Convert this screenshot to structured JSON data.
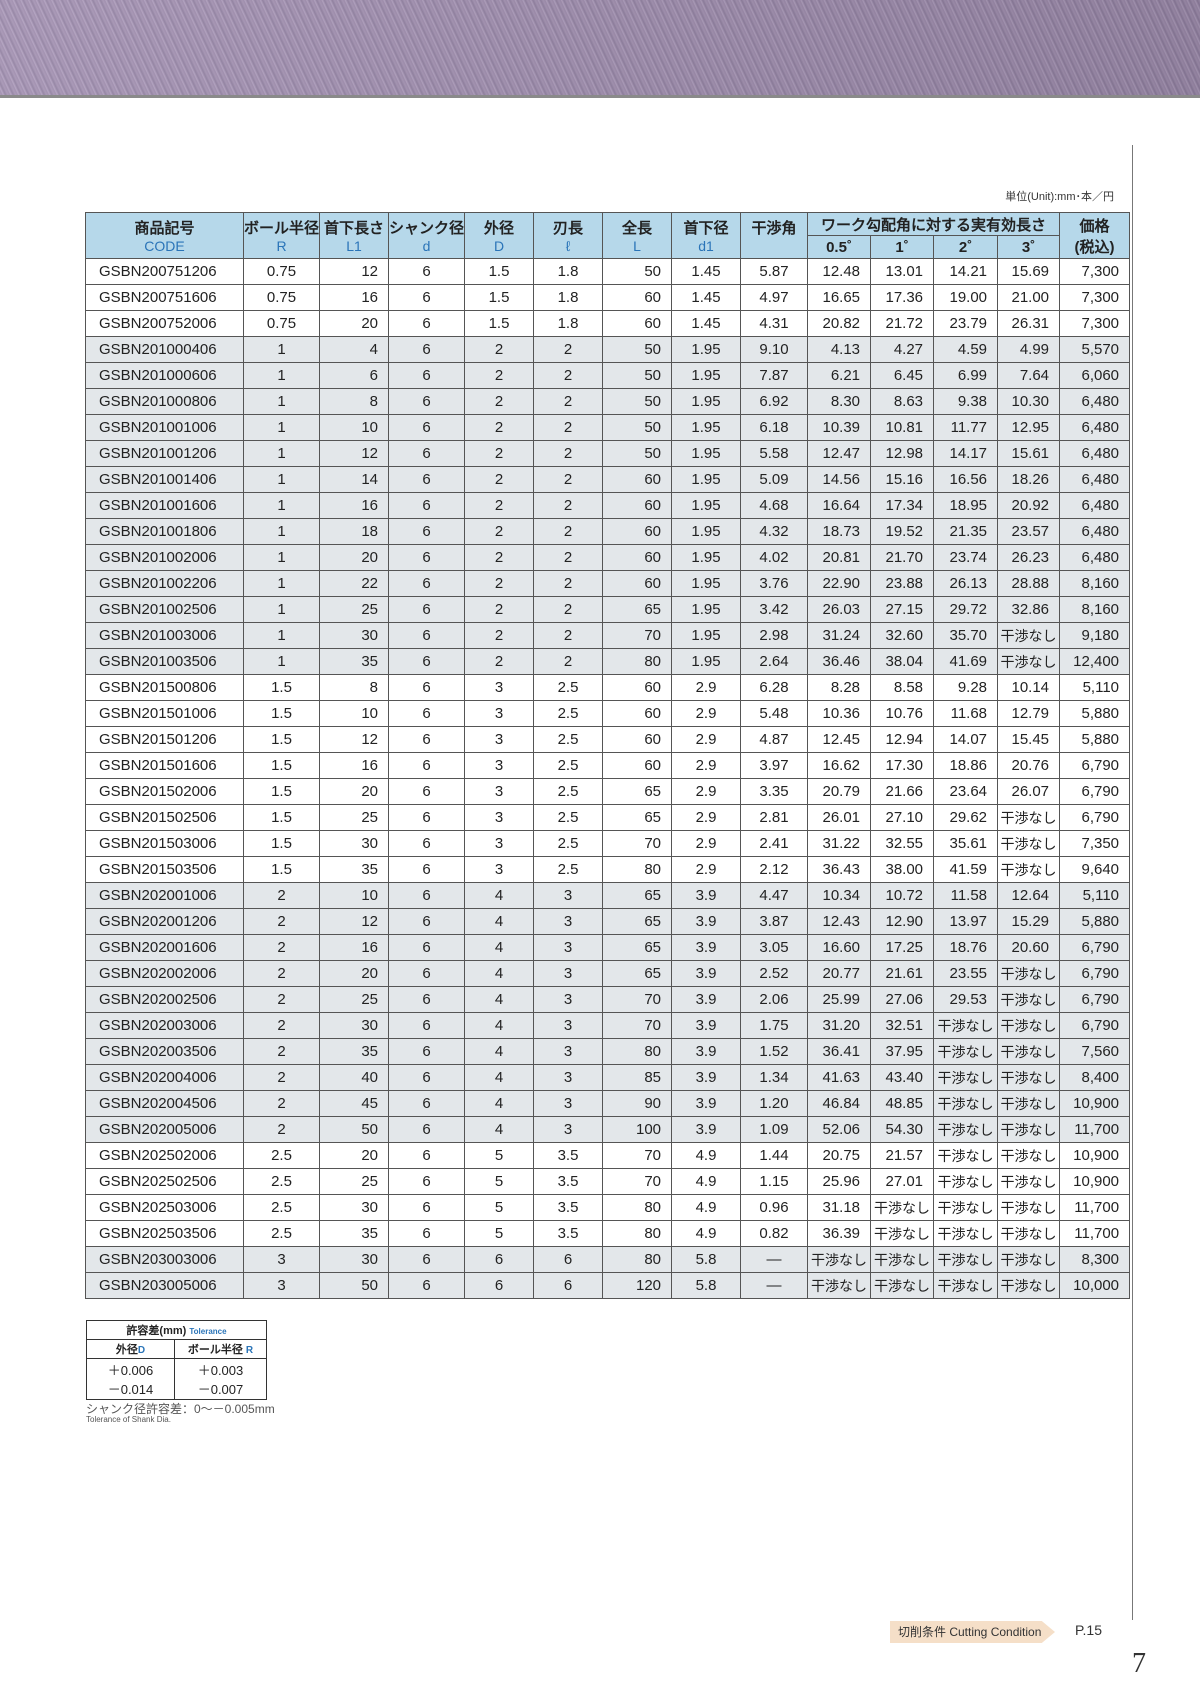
{
  "unit": "単位(Unit):mm･本／円",
  "header": {
    "code_jp": "商品記号",
    "code_en": "CODE",
    "r_jp": "ボール半径",
    "r_en": "R",
    "l1_jp": "首下長さ",
    "l1_en": "L1",
    "d_jp": "シャンク径",
    "d_en": "d",
    "D_jp": "外径",
    "D_en": "D",
    "l_jp": "刃長",
    "l_en": "ℓ",
    "L_jp": "全長",
    "L_en": "L",
    "d1_jp": "首下径",
    "d1_en": "d1",
    "angle_jp": "干渉角",
    "eff_jp": "ワーク勾配角に対する実有効長さ",
    "a05": "0.5˚",
    "a1": "1˚",
    "a2": "2˚",
    "a3": "3˚",
    "price_jp": "価格",
    "price_sub": "(税込)"
  },
  "rows": [
    [
      "GSBN200751206",
      "0.75",
      "12",
      "6",
      "1.5",
      "1.8",
      "50",
      "1.45",
      "5.87",
      "12.48",
      "13.01",
      "14.21",
      "15.69",
      "7,300"
    ],
    [
      "GSBN200751606",
      "0.75",
      "16",
      "6",
      "1.5",
      "1.8",
      "60",
      "1.45",
      "4.97",
      "16.65",
      "17.36",
      "19.00",
      "21.00",
      "7,300"
    ],
    [
      "GSBN200752006",
      "0.75",
      "20",
      "6",
      "1.5",
      "1.8",
      "60",
      "1.45",
      "4.31",
      "20.82",
      "21.72",
      "23.79",
      "26.31",
      "7,300"
    ],
    [
      "GSBN201000406",
      "1",
      "4",
      "6",
      "2",
      "2",
      "50",
      "1.95",
      "9.10",
      "4.13",
      "4.27",
      "4.59",
      "4.99",
      "5,570"
    ],
    [
      "GSBN201000606",
      "1",
      "6",
      "6",
      "2",
      "2",
      "50",
      "1.95",
      "7.87",
      "6.21",
      "6.45",
      "6.99",
      "7.64",
      "6,060"
    ],
    [
      "GSBN201000806",
      "1",
      "8",
      "6",
      "2",
      "2",
      "50",
      "1.95",
      "6.92",
      "8.30",
      "8.63",
      "9.38",
      "10.30",
      "6,480"
    ],
    [
      "GSBN201001006",
      "1",
      "10",
      "6",
      "2",
      "2",
      "50",
      "1.95",
      "6.18",
      "10.39",
      "10.81",
      "11.77",
      "12.95",
      "6,480"
    ],
    [
      "GSBN201001206",
      "1",
      "12",
      "6",
      "2",
      "2",
      "50",
      "1.95",
      "5.58",
      "12.47",
      "12.98",
      "14.17",
      "15.61",
      "6,480"
    ],
    [
      "GSBN201001406",
      "1",
      "14",
      "6",
      "2",
      "2",
      "60",
      "1.95",
      "5.09",
      "14.56",
      "15.16",
      "16.56",
      "18.26",
      "6,480"
    ],
    [
      "GSBN201001606",
      "1",
      "16",
      "6",
      "2",
      "2",
      "60",
      "1.95",
      "4.68",
      "16.64",
      "17.34",
      "18.95",
      "20.92",
      "6,480"
    ],
    [
      "GSBN201001806",
      "1",
      "18",
      "6",
      "2",
      "2",
      "60",
      "1.95",
      "4.32",
      "18.73",
      "19.52",
      "21.35",
      "23.57",
      "6,480"
    ],
    [
      "GSBN201002006",
      "1",
      "20",
      "6",
      "2",
      "2",
      "60",
      "1.95",
      "4.02",
      "20.81",
      "21.70",
      "23.74",
      "26.23",
      "6,480"
    ],
    [
      "GSBN201002206",
      "1",
      "22",
      "6",
      "2",
      "2",
      "60",
      "1.95",
      "3.76",
      "22.90",
      "23.88",
      "26.13",
      "28.88",
      "8,160"
    ],
    [
      "GSBN201002506",
      "1",
      "25",
      "6",
      "2",
      "2",
      "65",
      "1.95",
      "3.42",
      "26.03",
      "27.15",
      "29.72",
      "32.86",
      "8,160"
    ],
    [
      "GSBN201003006",
      "1",
      "30",
      "6",
      "2",
      "2",
      "70",
      "1.95",
      "2.98",
      "31.24",
      "32.60",
      "35.70",
      "干渉なし",
      "9,180"
    ],
    [
      "GSBN201003506",
      "1",
      "35",
      "6",
      "2",
      "2",
      "80",
      "1.95",
      "2.64",
      "36.46",
      "38.04",
      "41.69",
      "干渉なし",
      "12,400"
    ],
    [
      "GSBN201500806",
      "1.5",
      "8",
      "6",
      "3",
      "2.5",
      "60",
      "2.9",
      "6.28",
      "8.28",
      "8.58",
      "9.28",
      "10.14",
      "5,110"
    ],
    [
      "GSBN201501006",
      "1.5",
      "10",
      "6",
      "3",
      "2.5",
      "60",
      "2.9",
      "5.48",
      "10.36",
      "10.76",
      "11.68",
      "12.79",
      "5,880"
    ],
    [
      "GSBN201501206",
      "1.5",
      "12",
      "6",
      "3",
      "2.5",
      "60",
      "2.9",
      "4.87",
      "12.45",
      "12.94",
      "14.07",
      "15.45",
      "5,880"
    ],
    [
      "GSBN201501606",
      "1.5",
      "16",
      "6",
      "3",
      "2.5",
      "60",
      "2.9",
      "3.97",
      "16.62",
      "17.30",
      "18.86",
      "20.76",
      "6,790"
    ],
    [
      "GSBN201502006",
      "1.5",
      "20",
      "6",
      "3",
      "2.5",
      "65",
      "2.9",
      "3.35",
      "20.79",
      "21.66",
      "23.64",
      "26.07",
      "6,790"
    ],
    [
      "GSBN201502506",
      "1.5",
      "25",
      "6",
      "3",
      "2.5",
      "65",
      "2.9",
      "2.81",
      "26.01",
      "27.10",
      "29.62",
      "干渉なし",
      "6,790"
    ],
    [
      "GSBN201503006",
      "1.5",
      "30",
      "6",
      "3",
      "2.5",
      "70",
      "2.9",
      "2.41",
      "31.22",
      "32.55",
      "35.61",
      "干渉なし",
      "7,350"
    ],
    [
      "GSBN201503506",
      "1.5",
      "35",
      "6",
      "3",
      "2.5",
      "80",
      "2.9",
      "2.12",
      "36.43",
      "38.00",
      "41.59",
      "干渉なし",
      "9,640"
    ],
    [
      "GSBN202001006",
      "2",
      "10",
      "6",
      "4",
      "3",
      "65",
      "3.9",
      "4.47",
      "10.34",
      "10.72",
      "11.58",
      "12.64",
      "5,110"
    ],
    [
      "GSBN202001206",
      "2",
      "12",
      "6",
      "4",
      "3",
      "65",
      "3.9",
      "3.87",
      "12.43",
      "12.90",
      "13.97",
      "15.29",
      "5,880"
    ],
    [
      "GSBN202001606",
      "2",
      "16",
      "6",
      "4",
      "3",
      "65",
      "3.9",
      "3.05",
      "16.60",
      "17.25",
      "18.76",
      "20.60",
      "6,790"
    ],
    [
      "GSBN202002006",
      "2",
      "20",
      "6",
      "4",
      "3",
      "65",
      "3.9",
      "2.52",
      "20.77",
      "21.61",
      "23.55",
      "干渉なし",
      "6,790"
    ],
    [
      "GSBN202002506",
      "2",
      "25",
      "6",
      "4",
      "3",
      "70",
      "3.9",
      "2.06",
      "25.99",
      "27.06",
      "29.53",
      "干渉なし",
      "6,790"
    ],
    [
      "GSBN202003006",
      "2",
      "30",
      "6",
      "4",
      "3",
      "70",
      "3.9",
      "1.75",
      "31.20",
      "32.51",
      "干渉なし",
      "干渉なし",
      "6,790"
    ],
    [
      "GSBN202003506",
      "2",
      "35",
      "6",
      "4",
      "3",
      "80",
      "3.9",
      "1.52",
      "36.41",
      "37.95",
      "干渉なし",
      "干渉なし",
      "7,560"
    ],
    [
      "GSBN202004006",
      "2",
      "40",
      "6",
      "4",
      "3",
      "85",
      "3.9",
      "1.34",
      "41.63",
      "43.40",
      "干渉なし",
      "干渉なし",
      "8,400"
    ],
    [
      "GSBN202004506",
      "2",
      "45",
      "6",
      "4",
      "3",
      "90",
      "3.9",
      "1.20",
      "46.84",
      "48.85",
      "干渉なし",
      "干渉なし",
      "10,900"
    ],
    [
      "GSBN202005006",
      "2",
      "50",
      "6",
      "4",
      "3",
      "100",
      "3.9",
      "1.09",
      "52.06",
      "54.30",
      "干渉なし",
      "干渉なし",
      "11,700"
    ],
    [
      "GSBN202502006",
      "2.5",
      "20",
      "6",
      "5",
      "3.5",
      "70",
      "4.9",
      "1.44",
      "20.75",
      "21.57",
      "干渉なし",
      "干渉なし",
      "10,900"
    ],
    [
      "GSBN202502506",
      "2.5",
      "25",
      "6",
      "5",
      "3.5",
      "70",
      "4.9",
      "1.15",
      "25.96",
      "27.01",
      "干渉なし",
      "干渉なし",
      "10,900"
    ],
    [
      "GSBN202503006",
      "2.5",
      "30",
      "6",
      "5",
      "3.5",
      "80",
      "4.9",
      "0.96",
      "31.18",
      "干渉なし",
      "干渉なし",
      "干渉なし",
      "11,700"
    ],
    [
      "GSBN202503506",
      "2.5",
      "35",
      "6",
      "5",
      "3.5",
      "80",
      "4.9",
      "0.82",
      "36.39",
      "干渉なし",
      "干渉なし",
      "干渉なし",
      "11,700"
    ],
    [
      "GSBN203003006",
      "3",
      "30",
      "6",
      "6",
      "6",
      "80",
      "5.8",
      "—",
      "干渉なし",
      "干渉なし",
      "干渉なし",
      "干渉なし",
      "8,300"
    ],
    [
      "GSBN203005006",
      "3",
      "50",
      "6",
      "6",
      "6",
      "120",
      "5.8",
      "—",
      "干渉なし",
      "干渉なし",
      "干渉なし",
      "干渉なし",
      "10,000"
    ]
  ],
  "tolerance": {
    "title_jp": "許容差(mm)",
    "title_en": "Tolerance",
    "col1_jp": "外径",
    "col1_en": "D",
    "col2_jp": "ボール半径",
    "col2_en": "R",
    "col1_plus": "＋0.006",
    "col1_minus": "－0.014",
    "col2_plus": "＋0.003",
    "col2_minus": "－0.007",
    "shank_jp": "シャンク径許容差：0～－0.005mm",
    "shank_en": "Tolerance of Shank Dia."
  },
  "footer": {
    "link": "切削条件 Cutting Condition",
    "page_ref": "P.15",
    "page_number": "7"
  },
  "colors": {
    "header_bg": "#b6d8ea",
    "shade_row": "#e3e7ea",
    "accent_blue": "#2a74b8",
    "banner": "#9c8aab",
    "link_bg": "#f5dfc8"
  }
}
